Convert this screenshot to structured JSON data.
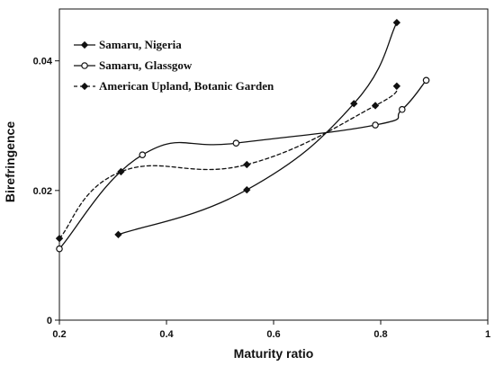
{
  "chart_data": {
    "type": "line",
    "title": "",
    "xlabel": "Maturity ratio",
    "ylabel": "Birefringence",
    "xlim": [
      0.2,
      1
    ],
    "ylim": [
      0,
      0.048
    ],
    "x_ticks": [
      0.2,
      0.4,
      0.6,
      0.8,
      1
    ],
    "x_tick_labels": [
      "0.2",
      "0.4",
      "0.6",
      "0.8",
      "1"
    ],
    "y_ticks": [
      0,
      0.02,
      0.04
    ],
    "y_tick_labels": [
      "0",
      "0.02",
      "0.04"
    ],
    "grid": false,
    "legend_position": "top-left",
    "series": [
      {
        "name": "Samaru, Nigeria",
        "x": [
          0.31,
          0.55,
          0.75,
          0.83
        ],
        "y": [
          0.0132,
          0.0201,
          0.0334,
          0.0459
        ],
        "line_style": "solid",
        "marker": "filled-diamond",
        "color": "#111111"
      },
      {
        "name": "Samaru, Glassgow",
        "x": [
          0.2,
          0.355,
          0.53,
          0.79,
          0.84,
          0.885
        ],
        "y": [
          0.011,
          0.0255,
          0.0273,
          0.0301,
          0.0325,
          0.037
        ],
        "line_style": "solid",
        "marker": "open-circle",
        "color": "#111111"
      },
      {
        "name": "American Upland, Botanic Garden",
        "x": [
          0.2,
          0.315,
          0.55,
          0.79,
          0.83
        ],
        "y": [
          0.0126,
          0.0229,
          0.024,
          0.0331,
          0.0361
        ],
        "line_style": "dashed",
        "marker": "filled-diamond",
        "color": "#111111"
      }
    ]
  }
}
